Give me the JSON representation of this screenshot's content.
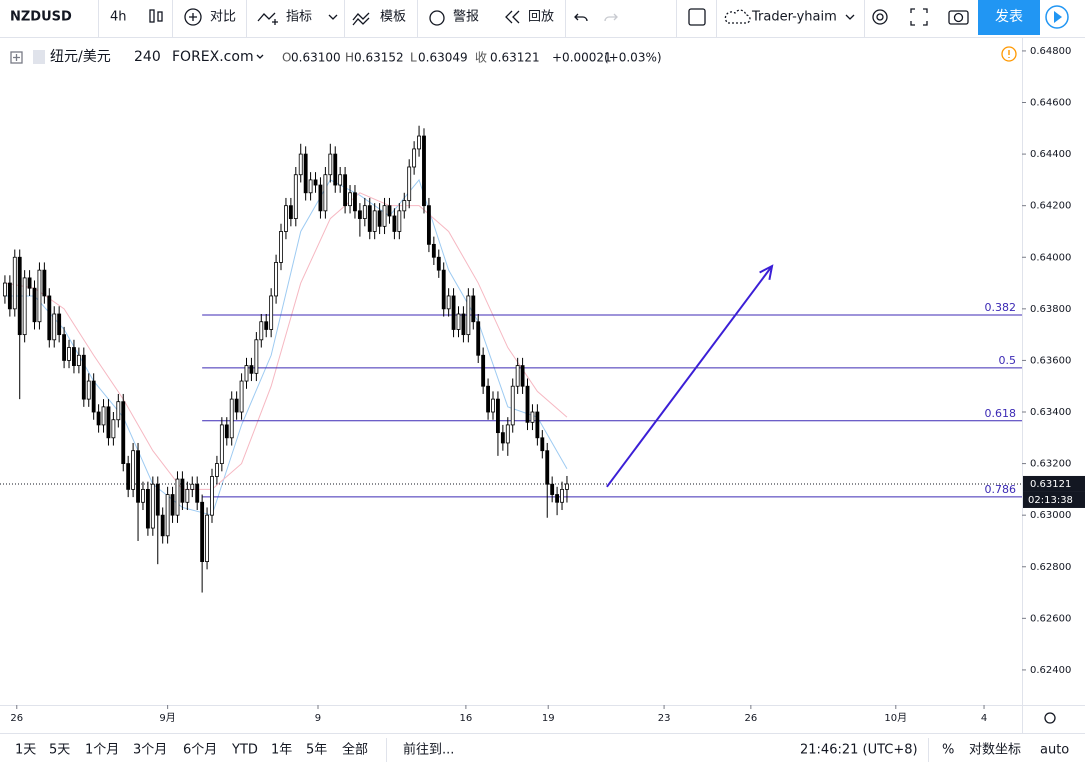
{
  "toolbar": {
    "symbol": "NZDUSD",
    "interval": "4h",
    "compare": "对比",
    "indicators": "指标",
    "templates": "模板",
    "alert": "警报",
    "replay": "回放",
    "user": "Trader-yhaim",
    "publish": "发表"
  },
  "legend": {
    "name": "纽元/美元",
    "interval": "240",
    "source": "FOREX.com",
    "open_label": "O",
    "open": "0.63100",
    "high_label": "H",
    "high": "0.63152",
    "low_label": "L",
    "low": "0.63049",
    "close_label": "收",
    "close": "0.63121",
    "change": "+0.00021",
    "change_pct": "(+0.03%)"
  },
  "chart_data": {
    "type": "candlestick",
    "up_color": "#ffffff",
    "down_color": "#000000",
    "wick_color": "#000000",
    "x": [
      0,
      1,
      2,
      3,
      4,
      5,
      6,
      7,
      8,
      9,
      10,
      11,
      12,
      13,
      14,
      15,
      16,
      17,
      18,
      19,
      20,
      21,
      22,
      23,
      24,
      25,
      26,
      27,
      28,
      29,
      30,
      31,
      32,
      33,
      34,
      35,
      36,
      37,
      38,
      39,
      40,
      41,
      42,
      43,
      44,
      45,
      46,
      47,
      48,
      49,
      50,
      51,
      52,
      53,
      54,
      55,
      56,
      57,
      58,
      59,
      60,
      61,
      62,
      63,
      64,
      65,
      66,
      67,
      68,
      69,
      70,
      71,
      72,
      73,
      74,
      75,
      76,
      77,
      78,
      79,
      80,
      81,
      82,
      83,
      84,
      85,
      86,
      87,
      88,
      89,
      90,
      91,
      92,
      93,
      94,
      95,
      96,
      97,
      98,
      99,
      100,
      101,
      102,
      103,
      104,
      105,
      106,
      107,
      108,
      109,
      110,
      111,
      112,
      113,
      114
    ],
    "open": [
      0.6385,
      0.639,
      0.638,
      0.64,
      0.637,
      0.6392,
      0.6388,
      0.6375,
      0.6395,
      0.6385,
      0.6368,
      0.6378,
      0.637,
      0.636,
      0.6365,
      0.6358,
      0.6362,
      0.6345,
      0.6352,
      0.634,
      0.6335,
      0.6342,
      0.633,
      0.6337,
      0.6344,
      0.632,
      0.631,
      0.6325,
      0.6305,
      0.631,
      0.6295,
      0.6312,
      0.63,
      0.6292,
      0.6308,
      0.63,
      0.6314,
      0.6305,
      0.631,
      0.6312,
      0.6305,
      0.6282,
      0.63,
      0.6315,
      0.632,
      0.6335,
      0.633,
      0.6345,
      0.634,
      0.6352,
      0.6358,
      0.6355,
      0.6368,
      0.6375,
      0.6372,
      0.6385,
      0.6398,
      0.641,
      0.642,
      0.6415,
      0.6432,
      0.644,
      0.6425,
      0.643,
      0.6428,
      0.6418,
      0.6432,
      0.644,
      0.6428,
      0.6432,
      0.642,
      0.6425,
      0.6418,
      0.6415,
      0.642,
      0.641,
      0.6418,
      0.6412,
      0.642,
      0.6416,
      0.641,
      0.6418,
      0.6422,
      0.6435,
      0.6442,
      0.6447,
      0.642,
      0.6405,
      0.64,
      0.6395,
      0.638,
      0.6385,
      0.6372,
      0.6378,
      0.637,
      0.6385,
      0.6375,
      0.6362,
      0.635,
      0.634,
      0.6345,
      0.6332,
      0.6328,
      0.6335,
      0.635,
      0.6358,
      0.635,
      0.6336,
      0.634,
      0.633,
      0.6325,
      0.6312,
      0.6308,
      0.6305,
      0.631
    ],
    "high": [
      0.6393,
      0.6393,
      0.6403,
      0.6403,
      0.6395,
      0.6395,
      0.6391,
      0.6398,
      0.6398,
      0.6388,
      0.6381,
      0.6381,
      0.6373,
      0.6368,
      0.6368,
      0.6365,
      0.6365,
      0.6355,
      0.6355,
      0.6343,
      0.6345,
      0.6345,
      0.634,
      0.6347,
      0.6347,
      0.6323,
      0.6328,
      0.6328,
      0.6313,
      0.6313,
      0.6315,
      0.6315,
      0.6303,
      0.6311,
      0.6311,
      0.6317,
      0.6317,
      0.6313,
      0.6315,
      0.6315,
      0.6308,
      0.6303,
      0.6318,
      0.6323,
      0.6338,
      0.6338,
      0.6348,
      0.6348,
      0.6355,
      0.6361,
      0.6361,
      0.6371,
      0.6378,
      0.6378,
      0.6388,
      0.6401,
      0.6413,
      0.6423,
      0.6423,
      0.6435,
      0.6444,
      0.6443,
      0.6433,
      0.6433,
      0.6431,
      0.6435,
      0.6444,
      0.6443,
      0.6435,
      0.6435,
      0.6428,
      0.6428,
      0.6421,
      0.6423,
      0.6423,
      0.6421,
      0.6421,
      0.6423,
      0.6423,
      0.6419,
      0.6421,
      0.6425,
      0.6438,
      0.6445,
      0.6451,
      0.645,
      0.6423,
      0.6408,
      0.6403,
      0.6398,
      0.6388,
      0.6388,
      0.6381,
      0.6381,
      0.6388,
      0.6388,
      0.6378,
      0.6365,
      0.6353,
      0.6348,
      0.6348,
      0.6335,
      0.6338,
      0.6353,
      0.6361,
      0.6361,
      0.6353,
      0.6343,
      0.6343,
      0.6333,
      0.6328,
      0.6315,
      0.6311,
      0.6313,
      0.63152
    ],
    "low": [
      0.6382,
      0.6377,
      0.6377,
      0.6345,
      0.6367,
      0.6385,
      0.6372,
      0.6372,
      0.6382,
      0.6365,
      0.6365,
      0.6367,
      0.6357,
      0.6357,
      0.6355,
      0.6355,
      0.6342,
      0.6342,
      0.6337,
      0.6332,
      0.6332,
      0.6327,
      0.6327,
      0.6334,
      0.6317,
      0.6307,
      0.6307,
      0.629,
      0.6302,
      0.6292,
      0.6292,
      0.6281,
      0.6289,
      0.6289,
      0.6297,
      0.6297,
      0.6302,
      0.6302,
      0.6307,
      0.6302,
      0.627,
      0.6279,
      0.6297,
      0.6312,
      0.6317,
      0.6327,
      0.6327,
      0.6337,
      0.6337,
      0.6349,
      0.6352,
      0.6352,
      0.6365,
      0.6369,
      0.6369,
      0.6382,
      0.6395,
      0.6407,
      0.6412,
      0.6412,
      0.6429,
      0.6422,
      0.6422,
      0.6425,
      0.6415,
      0.6415,
      0.6429,
      0.6425,
      0.6425,
      0.6417,
      0.6417,
      0.6415,
      0.6408,
      0.6412,
      0.6407,
      0.6407,
      0.6409,
      0.6409,
      0.6413,
      0.6407,
      0.6407,
      0.6415,
      0.6419,
      0.6432,
      0.6439,
      0.6417,
      0.6402,
      0.6397,
      0.6392,
      0.6377,
      0.6377,
      0.6369,
      0.6369,
      0.6367,
      0.6367,
      0.6372,
      0.6359,
      0.6347,
      0.6337,
      0.6337,
      0.6323,
      0.6325,
      0.6323,
      0.6332,
      0.6347,
      0.6347,
      0.6333,
      0.6333,
      0.6327,
      0.6322,
      0.6299,
      0.6305,
      0.63,
      0.6302,
      0.63049
    ],
    "close": [
      0.639,
      0.638,
      0.64,
      0.637,
      0.6392,
      0.6388,
      0.6375,
      0.6395,
      0.6385,
      0.6368,
      0.6378,
      0.637,
      0.636,
      0.6365,
      0.6358,
      0.6362,
      0.6345,
      0.6352,
      0.634,
      0.6335,
      0.6342,
      0.633,
      0.6337,
      0.6344,
      0.632,
      0.631,
      0.6325,
      0.6305,
      0.631,
      0.6295,
      0.6312,
      0.63,
      0.6292,
      0.6308,
      0.63,
      0.6314,
      0.6305,
      0.631,
      0.6312,
      0.6305,
      0.6282,
      0.63,
      0.6315,
      0.632,
      0.6335,
      0.633,
      0.6345,
      0.634,
      0.6352,
      0.6358,
      0.6355,
      0.6368,
      0.6375,
      0.6372,
      0.6385,
      0.6398,
      0.641,
      0.642,
      0.6415,
      0.6432,
      0.644,
      0.6425,
      0.643,
      0.6428,
      0.6418,
      0.6432,
      0.644,
      0.6428,
      0.6432,
      0.642,
      0.6425,
      0.6418,
      0.6415,
      0.642,
      0.641,
      0.6418,
      0.6412,
      0.642,
      0.6416,
      0.641,
      0.6418,
      0.6422,
      0.6435,
      0.6442,
      0.6447,
      0.642,
      0.6405,
      0.64,
      0.6395,
      0.638,
      0.6385,
      0.6372,
      0.6378,
      0.637,
      0.6385,
      0.6375,
      0.6362,
      0.635,
      0.634,
      0.6345,
      0.6332,
      0.6328,
      0.6335,
      0.635,
      0.6358,
      0.635,
      0.6336,
      0.634,
      0.633,
      0.6325,
      0.6312,
      0.6308,
      0.6305,
      0.631,
      0.63121
    ],
    "ma_lines": [
      {
        "color": "#9ecbf2",
        "x": [
          0,
          6,
          12,
          18,
          24,
          30,
          36,
          42,
          48,
          54,
          60,
          66,
          72,
          78,
          84,
          90,
          96,
          102,
          108,
          114
        ],
        "values": [
          0.6385,
          0.6385,
          0.6372,
          0.6352,
          0.6338,
          0.6312,
          0.6303,
          0.63,
          0.6335,
          0.6362,
          0.641,
          0.643,
          0.6424,
          0.6416,
          0.643,
          0.6395,
          0.6375,
          0.6342,
          0.6338,
          0.6318
        ]
      },
      {
        "color": "#f6b8c2",
        "x": [
          0,
          6,
          12,
          18,
          24,
          30,
          36,
          42,
          48,
          54,
          60,
          66,
          72,
          78,
          84,
          90,
          96,
          102,
          108,
          114
        ],
        "values": [
          0.639,
          0.6388,
          0.638,
          0.6362,
          0.6345,
          0.6325,
          0.631,
          0.631,
          0.632,
          0.635,
          0.639,
          0.6415,
          0.6425,
          0.642,
          0.642,
          0.641,
          0.639,
          0.6365,
          0.6348,
          0.6338
        ]
      }
    ],
    "fib": {
      "color": "#3c2ab5",
      "start_x": 40,
      "levels": [
        0.382,
        0.5,
        0.618,
        0.786
      ],
      "prices": [
        0.63776,
        0.63571,
        0.63366,
        0.63071
      ]
    },
    "arrow": {
      "color": "#3b1fd6",
      "x": [
        122.1,
        155.6
      ],
      "y": [
        0.6311,
        0.63966
      ]
    },
    "last_price": 0.63121,
    "countdown": "02:13:38",
    "xlim": [
      -1,
      206.3
    ],
    "ylim": [
      0.62264,
      0.64854
    ],
    "xticks": [
      {
        "value": 2.4,
        "label": "26"
      },
      {
        "value": 33,
        "label": "9月"
      },
      {
        "value": 63.5,
        "label": "9"
      },
      {
        "value": 93.5,
        "label": "16"
      },
      {
        "value": 110.2,
        "label": "19"
      },
      {
        "value": 133.7,
        "label": "23"
      },
      {
        "value": 151.3,
        "label": "26"
      },
      {
        "value": 180.7,
        "label": "10月"
      },
      {
        "value": 198.6,
        "label": "4"
      }
    ],
    "yticks": [
      {
        "value": 0.648,
        "label": "0.64800"
      },
      {
        "value": 0.646,
        "label": "0.64600"
      },
      {
        "value": 0.644,
        "label": "0.64400"
      },
      {
        "value": 0.642,
        "label": "0.64200"
      },
      {
        "value": 0.64,
        "label": "0.64000"
      },
      {
        "value": 0.638,
        "label": "0.63800"
      },
      {
        "value": 0.636,
        "label": "0.63600"
      },
      {
        "value": 0.634,
        "label": "0.63400"
      },
      {
        "value": 0.632,
        "label": "0.63200"
      },
      {
        "value": 0.63,
        "label": "0.63000"
      },
      {
        "value": 0.628,
        "label": "0.62800"
      },
      {
        "value": 0.626,
        "label": "0.62600"
      },
      {
        "value": 0.624,
        "label": "0.62400"
      }
    ]
  },
  "bottom_bar": {
    "ranges": [
      "1天",
      "5天",
      "1个月",
      "3个月",
      "6个月",
      "YTD",
      "1年",
      "5年",
      "全部"
    ],
    "goto": "前往到...",
    "time": "21:46:21 (UTC+8)",
    "percent": "%",
    "log": "对数坐标",
    "auto": "auto"
  }
}
